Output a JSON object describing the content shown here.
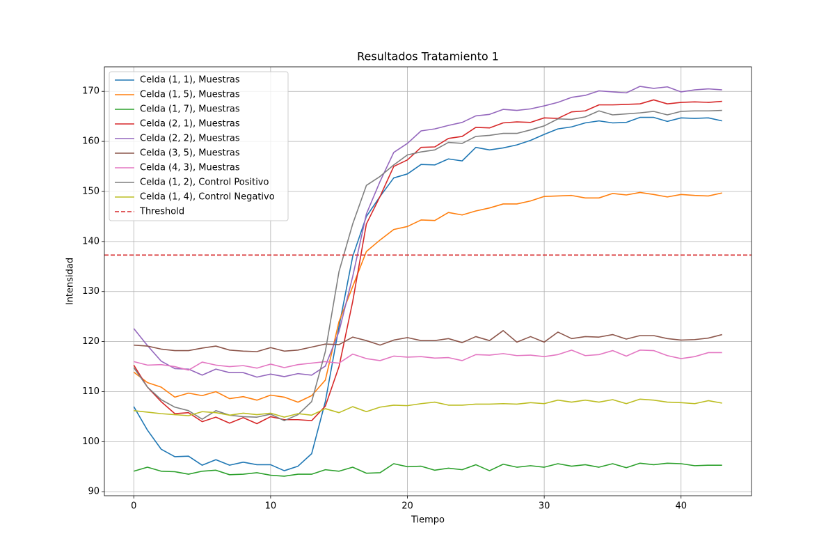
{
  "chart_data": {
    "type": "line",
    "title": "Resultados Tratamiento 1",
    "xlabel": "Tiempo",
    "ylabel": "Intensidad",
    "x": [
      0,
      1,
      2,
      3,
      4,
      5,
      6,
      7,
      8,
      9,
      10,
      11,
      12,
      13,
      14,
      15,
      16,
      17,
      18,
      19,
      20,
      21,
      22,
      23,
      24,
      25,
      26,
      27,
      28,
      29,
      30,
      31,
      32,
      33,
      34,
      35,
      36,
      37,
      38,
      39,
      40,
      41,
      42,
      43
    ],
    "series": [
      {
        "name": "Celda (1, 1), Muestras",
        "color": "#1f77b4",
        "values": [
          107,
          102.3,
          98.5,
          97,
          97.1,
          95.3,
          96.4,
          95.3,
          95.9,
          95.4,
          95.4,
          94.2,
          95.1,
          97.6,
          108,
          123,
          137,
          145,
          149,
          152.7,
          153.5,
          155.4,
          155.3,
          156.5,
          156.1,
          158.8,
          158.3,
          158.7,
          159.3,
          160.2,
          161.4,
          162.5,
          162.9,
          163.7,
          164.1,
          163.7,
          163.8,
          164.8,
          164.8,
          164,
          164.7,
          164.6,
          164.7,
          164.1
        ]
      },
      {
        "name": "Celda (1, 5), Muestras",
        "color": "#ff7f0e",
        "values": [
          113.9,
          111.8,
          110.9,
          108.9,
          109.7,
          109.2,
          110,
          108.6,
          109,
          108.3,
          109.3,
          108.9,
          107.9,
          109.2,
          112.3,
          124,
          131,
          138,
          140.3,
          142.4,
          143,
          144.3,
          144.2,
          145.8,
          145.3,
          146.1,
          146.7,
          147.5,
          147.5,
          148.1,
          149,
          149.1,
          149.2,
          148.7,
          148.7,
          149.6,
          149.3,
          149.8,
          149.4,
          148.9,
          149.4,
          149.2,
          149.1,
          149.7
        ]
      },
      {
        "name": "Celda (1, 7), Muestras",
        "color": "#2ca02c",
        "values": [
          94.1,
          94.9,
          94.1,
          94,
          93.5,
          94.1,
          94.3,
          93.4,
          93.5,
          93.8,
          93.3,
          93.1,
          93.5,
          93.5,
          94.4,
          94.1,
          94.9,
          93.7,
          93.8,
          95.6,
          95,
          95.1,
          94.3,
          94.7,
          94.4,
          95.4,
          94.2,
          95.5,
          94.9,
          95.2,
          94.9,
          95.6,
          95.1,
          95.4,
          94.9,
          95.6,
          94.8,
          95.7,
          95.4,
          95.7,
          95.6,
          95.2,
          95.3,
          95.3
        ]
      },
      {
        "name": "Celda (2, 1), Muestras",
        "color": "#d62728",
        "values": [
          115.3,
          110.9,
          108,
          105.6,
          105.8,
          104,
          104.9,
          103.7,
          104.8,
          103.6,
          105,
          104.4,
          104.4,
          104.2,
          107.1,
          115,
          128,
          143.5,
          149,
          155,
          156.3,
          158.8,
          158.9,
          160.6,
          161,
          162.8,
          162.7,
          163.7,
          163.9,
          163.8,
          164.7,
          164.6,
          165.9,
          166.1,
          167.3,
          167.3,
          167.4,
          167.5,
          168.3,
          167.5,
          167.8,
          167.9,
          167.8,
          168
        ]
      },
      {
        "name": "Celda (2, 2), Muestras",
        "color": "#9467bd",
        "values": [
          122.6,
          119.2,
          116.1,
          114.6,
          114.5,
          113.3,
          114.5,
          113.8,
          113.8,
          112.9,
          113.5,
          113,
          113.6,
          113.3,
          115.1,
          122,
          133,
          145.5,
          152,
          157.8,
          159.6,
          162.1,
          162.5,
          163.2,
          163.8,
          165.1,
          165.4,
          166.4,
          166.2,
          166.5,
          167.1,
          167.8,
          168.8,
          169.2,
          170.1,
          169.9,
          169.7,
          171,
          170.6,
          170.9,
          169.9,
          170.3,
          170.5,
          170.3
        ]
      },
      {
        "name": "Celda (3, 5), Muestras",
        "color": "#8c564b",
        "values": [
          119.3,
          119.1,
          118.5,
          118.2,
          118.2,
          118.7,
          119.1,
          118.3,
          118.1,
          118,
          118.8,
          118.1,
          118.3,
          118.9,
          119.5,
          119.4,
          120.9,
          120.2,
          119.3,
          120.3,
          120.8,
          120.2,
          120.2,
          120.6,
          119.8,
          121,
          120.2,
          122.2,
          119.9,
          121,
          119.9,
          121.9,
          120.6,
          121,
          120.9,
          121.4,
          120.5,
          121.2,
          121.2,
          120.6,
          120.3,
          120.4,
          120.7,
          121.4
        ]
      },
      {
        "name": "Celda (4, 3), Muestras",
        "color": "#e377c2",
        "values": [
          116,
          115.3,
          115.4,
          115,
          114.3,
          115.9,
          115.3,
          115,
          115.2,
          114.7,
          115.5,
          114.8,
          115.4,
          115.7,
          116,
          115.7,
          117.5,
          116.6,
          116.2,
          117.1,
          116.9,
          117,
          116.7,
          116.8,
          116.2,
          117.4,
          117.3,
          117.6,
          117.2,
          117.3,
          117,
          117.4,
          118.3,
          117.2,
          117.4,
          118.2,
          117.1,
          118.3,
          118.2,
          117.2,
          116.6,
          117,
          117.8,
          117.8
        ]
      },
      {
        "name": "Celda (1, 2), Control Positivo",
        "color": "#7f7f7f",
        "values": [
          114.8,
          110.9,
          108.4,
          106.9,
          106.2,
          104.5,
          106.2,
          105.3,
          105,
          104.9,
          105.5,
          104.2,
          105.4,
          108,
          118,
          134,
          143.5,
          151.2,
          153,
          155.3,
          157.3,
          157.9,
          158.3,
          159.8,
          159.6,
          161,
          161.2,
          161.6,
          161.6,
          162.3,
          163.1,
          164.5,
          164.4,
          164.9,
          166.1,
          165.3,
          165.5,
          165.7,
          166,
          165.3,
          166,
          166.1,
          166.1,
          166.2
        ]
      },
      {
        "name": "Celda (1, 4), Control Negativo",
        "color": "#bcbd22",
        "values": [
          106.2,
          105.9,
          105.6,
          105.4,
          105.2,
          106,
          105.8,
          105.3,
          105.7,
          105.4,
          105.7,
          104.9,
          105.6,
          105.3,
          106.6,
          105.8,
          107,
          106,
          106.9,
          107.3,
          107.2,
          107.6,
          107.9,
          107.3,
          107.3,
          107.5,
          107.5,
          107.6,
          107.5,
          107.8,
          107.6,
          108.3,
          107.9,
          108.3,
          107.9,
          108.4,
          107.6,
          108.5,
          108.3,
          107.9,
          107.8,
          107.6,
          108.2,
          107.7
        ]
      }
    ],
    "threshold": {
      "name": "Threshold",
      "value": 137.3,
      "color": "#d62728",
      "style": "dashed"
    },
    "xlim": [
      -2.15,
      45.15
    ],
    "xticks": [
      0,
      10,
      20,
      30,
      40
    ],
    "ylim": [
      89.2,
      174.9
    ],
    "yticks": [
      90,
      100,
      110,
      120,
      130,
      140,
      150,
      160,
      170
    ],
    "grid": true,
    "legend": "upper left"
  }
}
